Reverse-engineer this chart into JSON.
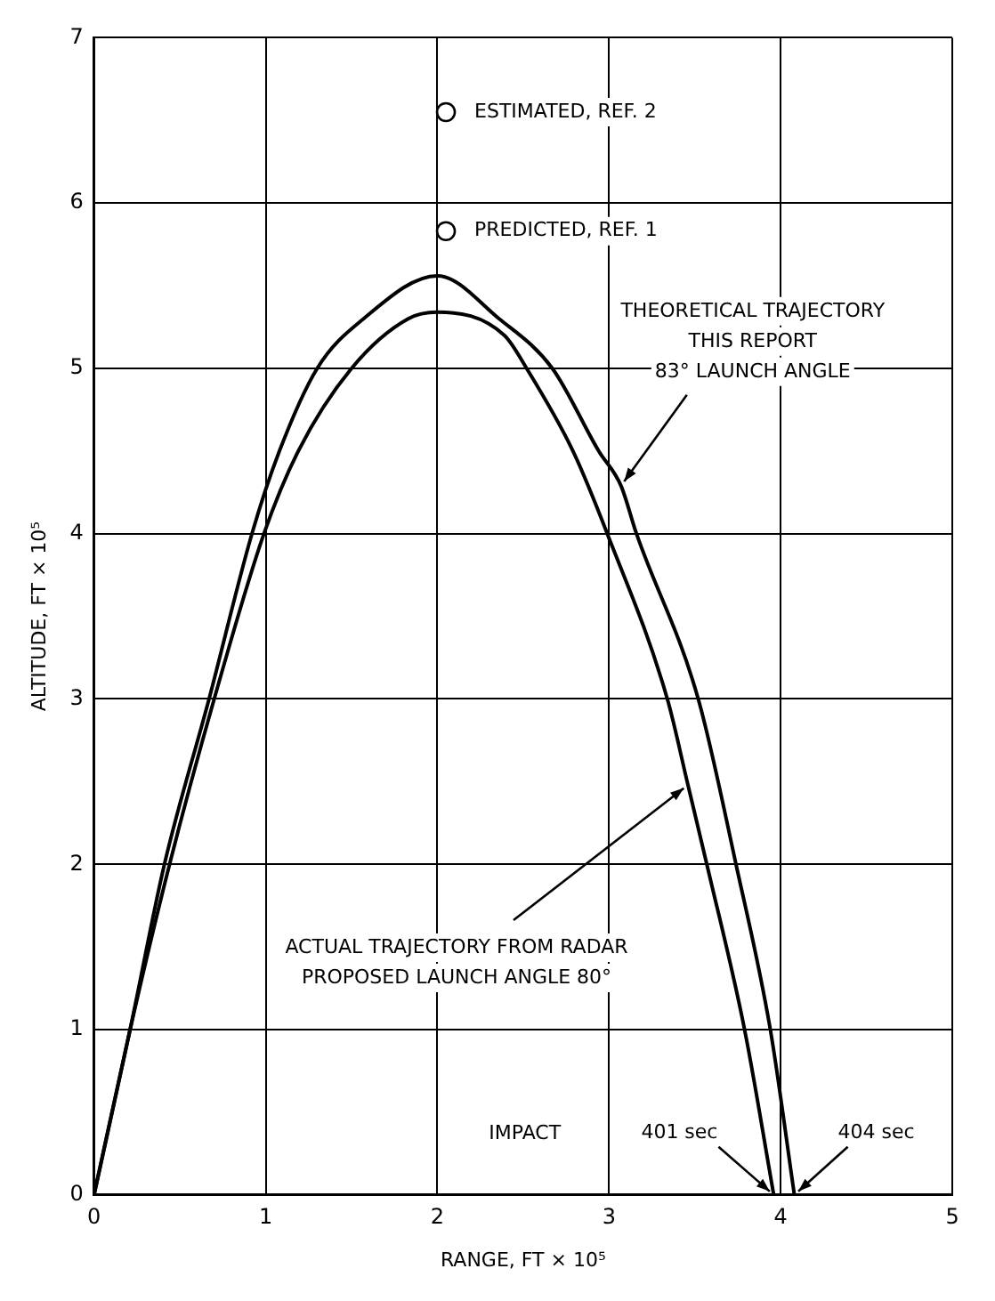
{
  "chart_data": {
    "type": "line",
    "xlabel": "RANGE, FT × 10⁵",
    "ylabel": "ALTITUDE, FT × 10⁵",
    "xlim": [
      0,
      5
    ],
    "xticks": [
      0,
      1,
      2,
      3,
      4,
      5
    ],
    "ylim": [
      0,
      7
    ],
    "yticks": [
      0,
      1,
      2,
      3,
      4,
      5,
      6,
      7
    ],
    "grid": true,
    "legend": false,
    "line_style": "solid",
    "series": [
      {
        "color": "#000000",
        "x": [
          0,
          0.21,
          0.41,
          0.67,
          0.92,
          1.08,
          1.3,
          1.57,
          2.0,
          2.36,
          2.67,
          2.94,
          3.07,
          3.16,
          3.52,
          3.74,
          3.94,
          4.08
        ],
        "values": [
          0,
          1,
          2,
          3,
          4,
          4.5,
          5,
          5.3,
          5.56,
          5.3,
          5,
          4.5,
          4.29,
          4,
          3,
          2,
          1,
          0
        ]
      },
      {
        "color": "#000000",
        "x": [
          0,
          0.21,
          0.44,
          0.7,
          0.99,
          1.19,
          1.5,
          1.83,
          2.0,
          2.39,
          2.52,
          2.79,
          2.99,
          3.34,
          3.46,
          3.57,
          3.79,
          3.96
        ],
        "values": [
          0,
          1,
          2,
          3,
          4,
          4.5,
          5,
          5.3,
          5.34,
          5.2,
          5,
          4.5,
          4,
          3,
          2.48,
          2,
          1,
          0
        ]
      },
      {
        "type": "scatter",
        "name": "ESTIMATED, REF. 2",
        "color": "#000000",
        "marker": "circle",
        "x": [
          2.05
        ],
        "values": [
          6.55
        ]
      },
      {
        "type": "scatter",
        "name": "PREDICTED, REF. 1",
        "color": "#000000",
        "marker": "circle",
        "x": [
          2.05
        ],
        "values": [
          5.83
        ]
      }
    ],
    "annotations": [
      {
        "text": "THEORETICAL TRAJECTORY\nTHIS REPORT\n83° LAUNCH ANGLE",
        "x": 3.07,
        "y": 4.29
      },
      {
        "text": "ACTUAL TRAJECTORY FROM RADAR\nPROPOSED LAUNCH ANGLE 80°",
        "x": 3.46,
        "y": 2.48
      },
      "IMPACT",
      {
        "text": "401 sec",
        "x": 3.96,
        "y": 0
      },
      {
        "text": "404 sec",
        "x": 4.08,
        "y": 0
      }
    ]
  }
}
